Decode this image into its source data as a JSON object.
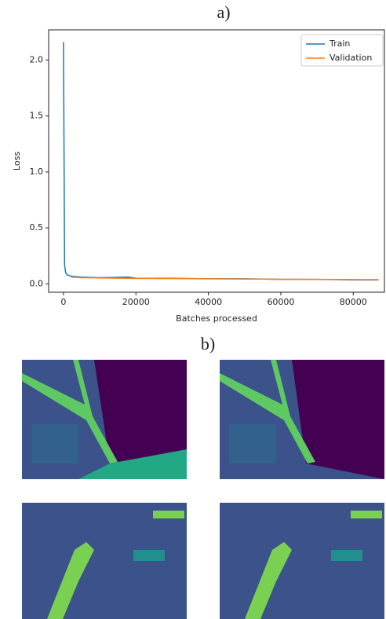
{
  "panel_labels": [
    "a)",
    "b)"
  ],
  "chart_data": {
    "type": "line",
    "xlabel": "Batches processed",
    "ylabel": "Loss",
    "x": [
      0,
      300,
      600,
      1000,
      2000,
      3000,
      5000,
      10000,
      18000,
      20000,
      30000,
      40000,
      50000,
      60000,
      70000,
      80000,
      87000
    ],
    "series": [
      {
        "name": "Train",
        "color": "#1f77b4",
        "values": [
          2.16,
          0.17,
          0.1,
          0.08,
          0.07,
          0.065,
          0.06,
          0.055,
          0.06,
          0.05,
          0.05,
          0.045,
          0.045,
          0.04,
          0.04,
          0.035,
          0.035
        ]
      },
      {
        "name": "Validation",
        "color": "#ff7f0e",
        "values": [
          null,
          null,
          null,
          null,
          0.06,
          0.058,
          0.055,
          0.052,
          0.05,
          0.049,
          0.047,
          0.045,
          0.043,
          0.041,
          0.04,
          0.038,
          0.037
        ]
      }
    ],
    "xlim": [
      -4100,
      88600
    ],
    "ylim": [
      -0.075,
      2.27
    ],
    "xticks": [
      0,
      20000,
      40000,
      60000,
      80000
    ],
    "yticks": [
      {
        "value": 0,
        "label": "0.0"
      },
      0.5,
      {
        "value": 1,
        "label": "1.0"
      },
      1.5,
      {
        "value": 2,
        "label": "2.0"
      }
    ],
    "legend": "upper right"
  }
}
